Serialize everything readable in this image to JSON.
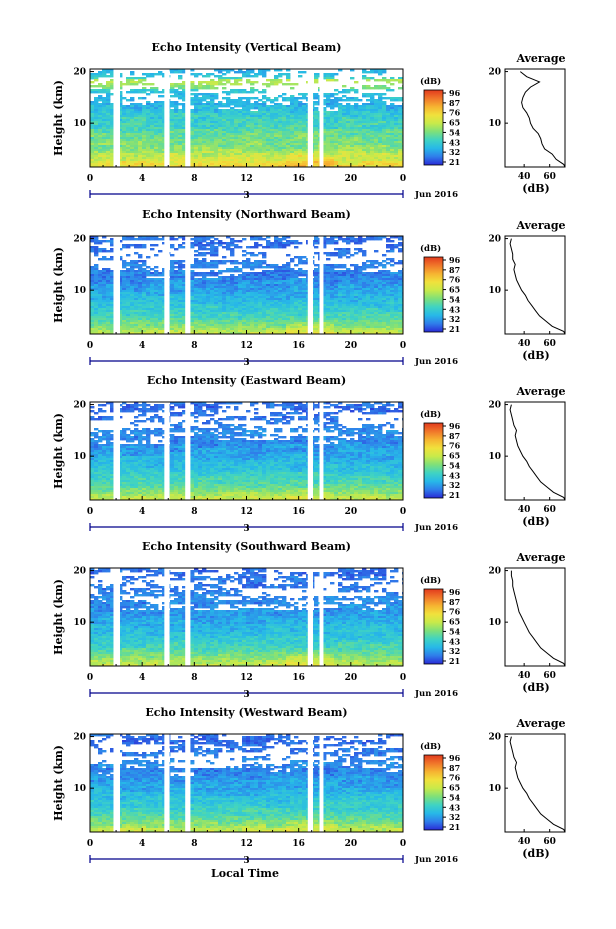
{
  "figure": {
    "xlabel": "Local Time",
    "day_label": "3",
    "month_label": "Jun 2016",
    "colorbar_unit": "(dB)",
    "colorbar_ticks": [
      "96",
      "87",
      "76",
      "65",
      "54",
      "43",
      "32",
      "21"
    ],
    "colorscale": [
      "#2a2ad6",
      "#2f7dea",
      "#27b8e8",
      "#3fd3c3",
      "#7ee07a",
      "#c8ea4a",
      "#f1e13c",
      "#f6b331",
      "#f0762a",
      "#e23a1d"
    ],
    "avg_title": "Average",
    "avg_xlabel": "(dB)",
    "avg_xticks": [
      "40",
      "60"
    ]
  },
  "chart_data": [
    {
      "type": "heatmap",
      "title": "Echo Intensity (Vertical Beam)",
      "ylabel": "Height (km)",
      "x_ticks": [
        "0",
        "4",
        "8",
        "12",
        "16",
        "20",
        "0"
      ],
      "y_ticks": [
        "20",
        "10"
      ],
      "xlim": [
        0,
        24
      ],
      "ylim": [
        1.5,
        20.5
      ],
      "cmap_range_db": [
        21,
        96
      ],
      "data_gaps_hours": [
        [
          1.8,
          2.3
        ],
        [
          5.7,
          6.1
        ],
        [
          7.3,
          7.7
        ],
        [
          16.7,
          17.1
        ],
        [
          17.6,
          17.9
        ]
      ],
      "profile": {
        "height_km": [
          1.5,
          2,
          3,
          4,
          5,
          6,
          7,
          8,
          9,
          10,
          11,
          12,
          13,
          14,
          15,
          16,
          17,
          18,
          19,
          20
        ],
        "value_db": [
          72,
          71,
          65,
          62,
          56,
          54,
          53,
          51,
          47,
          45,
          44,
          42,
          39,
          38,
          39,
          41,
          45,
          52,
          42,
          37
        ]
      }
    },
    {
      "type": "heatmap",
      "title": "Echo Intensity (Northward Beam)",
      "ylabel": "Height (km)",
      "x_ticks": [
        "0",
        "4",
        "8",
        "12",
        "16",
        "20",
        "0"
      ],
      "y_ticks": [
        "20",
        "10"
      ],
      "xlim": [
        0,
        24
      ],
      "ylim": [
        1.5,
        20.5
      ],
      "cmap_range_db": [
        21,
        96
      ],
      "data_gaps_hours": [
        [
          1.8,
          2.3
        ],
        [
          5.7,
          6.1
        ],
        [
          7.3,
          7.7
        ],
        [
          16.7,
          17.1
        ],
        [
          17.6,
          17.9
        ]
      ],
      "profile": {
        "height_km": [
          1.5,
          2,
          3,
          4,
          5,
          6,
          7,
          8,
          9,
          10,
          11,
          12,
          13,
          14,
          15,
          16,
          17,
          18,
          19,
          20
        ],
        "value_db": [
          72,
          71,
          62,
          57,
          52,
          49,
          46,
          43,
          41,
          38,
          36,
          34,
          33,
          32,
          33,
          31,
          31,
          30,
          29,
          30
        ]
      }
    },
    {
      "type": "heatmap",
      "title": "Echo Intensity (Eastward Beam)",
      "ylabel": "Height (km)",
      "x_ticks": [
        "0",
        "4",
        "8",
        "12",
        "16",
        "20",
        "0"
      ],
      "y_ticks": [
        "20",
        "10"
      ],
      "xlim": [
        0,
        24
      ],
      "ylim": [
        1.5,
        20.5
      ],
      "cmap_range_db": [
        21,
        96
      ],
      "data_gaps_hours": [
        [
          1.8,
          2.3
        ],
        [
          5.7,
          6.1
        ],
        [
          7.3,
          7.7
        ],
        [
          16.7,
          17.1
        ],
        [
          17.6,
          17.9
        ]
      ],
      "profile": {
        "height_km": [
          1.5,
          2,
          3,
          4,
          5,
          6,
          7,
          8,
          9,
          10,
          11,
          12,
          13,
          14,
          15,
          16,
          17,
          18,
          19,
          20
        ],
        "value_db": [
          72,
          71,
          63,
          58,
          53,
          50,
          47,
          44,
          42,
          39,
          37,
          35,
          34,
          33,
          34,
          32,
          31,
          30,
          29,
          30
        ]
      }
    },
    {
      "type": "heatmap",
      "title": "Echo Intensity (Southward Beam)",
      "ylabel": "Height (km)",
      "x_ticks": [
        "0",
        "4",
        "8",
        "12",
        "16",
        "20",
        "0"
      ],
      "y_ticks": [
        "20",
        "10"
      ],
      "xlim": [
        0,
        24
      ],
      "ylim": [
        1.5,
        20.5
      ],
      "cmap_range_db": [
        21,
        96
      ],
      "data_gaps_hours": [
        [
          1.8,
          2.3
        ],
        [
          5.7,
          6.1
        ],
        [
          7.3,
          7.7
        ],
        [
          16.7,
          17.1
        ],
        [
          17.6,
          17.9
        ]
      ],
      "profile": {
        "height_km": [
          1.5,
          2,
          3,
          4,
          5,
          6,
          7,
          8,
          9,
          10,
          11,
          12,
          13,
          14,
          15,
          16,
          17,
          18,
          19,
          20
        ],
        "value_db": [
          72,
          71,
          63,
          58,
          53,
          50,
          47,
          44,
          42,
          40,
          38,
          36,
          35,
          34,
          33,
          32,
          31,
          31,
          30,
          30
        ]
      }
    },
    {
      "type": "heatmap",
      "title": "Echo Intensity (Westward Beam)",
      "ylabel": "Height (km)",
      "x_ticks": [
        "0",
        "4",
        "8",
        "12",
        "16",
        "20",
        "0"
      ],
      "y_ticks": [
        "20",
        "10"
      ],
      "xlim": [
        0,
        24
      ],
      "ylim": [
        1.5,
        20.5
      ],
      "cmap_range_db": [
        21,
        96
      ],
      "data_gaps_hours": [
        [
          1.8,
          2.3
        ],
        [
          5.7,
          6.1
        ],
        [
          7.3,
          7.7
        ],
        [
          16.7,
          17.1
        ],
        [
          17.6,
          17.9
        ]
      ],
      "profile": {
        "height_km": [
          1.5,
          2,
          3,
          4,
          5,
          6,
          7,
          8,
          9,
          10,
          11,
          12,
          13,
          14,
          15,
          16,
          17,
          18,
          19,
          20
        ],
        "value_db": [
          72,
          71,
          63,
          58,
          53,
          50,
          47,
          44,
          42,
          39,
          37,
          35,
          34,
          33,
          34,
          32,
          31,
          30,
          29,
          30
        ]
      }
    }
  ]
}
